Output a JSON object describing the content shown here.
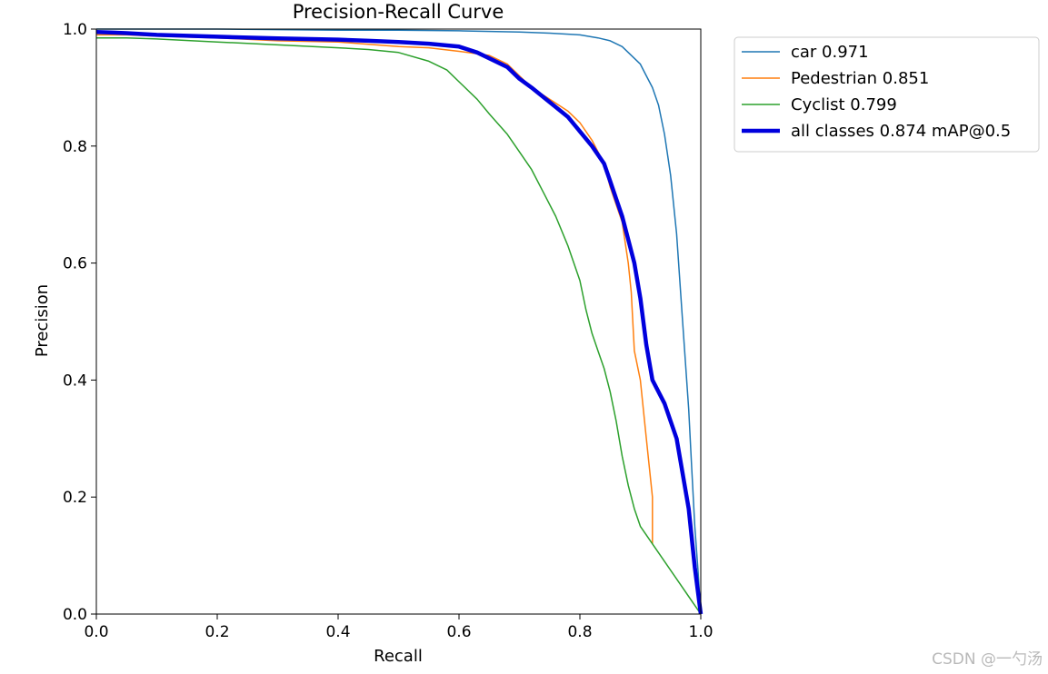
{
  "chart_data": {
    "type": "line",
    "title": "Precision-Recall Curve",
    "xlabel": "Recall",
    "ylabel": "Precision",
    "xlim": [
      0,
      1
    ],
    "ylim": [
      0,
      1
    ],
    "xticks": [
      "0.0",
      "0.2",
      "0.4",
      "0.6",
      "0.8",
      "1.0"
    ],
    "yticks": [
      "0.0",
      "0.2",
      "0.4",
      "0.6",
      "0.8",
      "1.0"
    ],
    "grid": false,
    "legend_position": "outside-top-right",
    "series": [
      {
        "name": "car 0.971",
        "color": "#1f77b4",
        "x": [
          0.0,
          0.05,
          0.1,
          0.2,
          0.3,
          0.4,
          0.5,
          0.6,
          0.7,
          0.75,
          0.8,
          0.83,
          0.85,
          0.87,
          0.89,
          0.9,
          0.91,
          0.92,
          0.93,
          0.94,
          0.95,
          0.96,
          0.97,
          0.98,
          0.985,
          0.99,
          0.995,
          1.0
        ],
        "y": [
          1.0,
          1.0,
          1.0,
          1.0,
          0.999,
          0.998,
          0.998,
          0.997,
          0.995,
          0.993,
          0.99,
          0.985,
          0.98,
          0.97,
          0.95,
          0.94,
          0.92,
          0.9,
          0.87,
          0.82,
          0.75,
          0.65,
          0.5,
          0.35,
          0.25,
          0.15,
          0.08,
          0.0
        ]
      },
      {
        "name": "Pedestrian 0.851",
        "color": "#ff7f0e",
        "x": [
          0.0,
          0.05,
          0.1,
          0.2,
          0.3,
          0.4,
          0.5,
          0.55,
          0.6,
          0.65,
          0.68,
          0.7,
          0.72,
          0.75,
          0.78,
          0.8,
          0.82,
          0.84,
          0.85,
          0.86,
          0.87,
          0.88,
          0.885,
          0.89,
          0.9,
          0.91,
          0.92,
          0.92
        ],
        "y": [
          0.99,
          0.99,
          0.988,
          0.985,
          0.98,
          0.978,
          0.97,
          0.968,
          0.962,
          0.955,
          0.94,
          0.92,
          0.9,
          0.88,
          0.86,
          0.84,
          0.81,
          0.77,
          0.73,
          0.7,
          0.67,
          0.6,
          0.55,
          0.45,
          0.4,
          0.3,
          0.2,
          0.12
        ]
      },
      {
        "name": "Cyclist 0.799",
        "color": "#2ca02c",
        "x": [
          0.0,
          0.05,
          0.1,
          0.2,
          0.3,
          0.4,
          0.45,
          0.5,
          0.55,
          0.58,
          0.6,
          0.63,
          0.65,
          0.68,
          0.7,
          0.72,
          0.74,
          0.76,
          0.78,
          0.8,
          0.81,
          0.82,
          0.83,
          0.84,
          0.85,
          0.86,
          0.87,
          0.88,
          0.89,
          0.9,
          1.0
        ],
        "y": [
          0.985,
          0.985,
          0.983,
          0.978,
          0.973,
          0.968,
          0.965,
          0.96,
          0.945,
          0.93,
          0.91,
          0.88,
          0.855,
          0.82,
          0.79,
          0.76,
          0.72,
          0.68,
          0.63,
          0.57,
          0.52,
          0.48,
          0.45,
          0.42,
          0.38,
          0.33,
          0.27,
          0.22,
          0.18,
          0.15,
          0.0
        ]
      },
      {
        "name": "all classes 0.874 mAP@0.5",
        "color": "#0000dd",
        "x": [
          0.0,
          0.05,
          0.1,
          0.2,
          0.3,
          0.4,
          0.45,
          0.5,
          0.55,
          0.6,
          0.63,
          0.65,
          0.68,
          0.7,
          0.72,
          0.75,
          0.78,
          0.8,
          0.82,
          0.84,
          0.85,
          0.86,
          0.87,
          0.88,
          0.89,
          0.9,
          0.91,
          0.92,
          0.94,
          0.96,
          0.98,
          0.99,
          1.0
        ],
        "y": [
          0.995,
          0.993,
          0.99,
          0.987,
          0.984,
          0.982,
          0.98,
          0.978,
          0.975,
          0.97,
          0.96,
          0.95,
          0.935,
          0.915,
          0.9,
          0.875,
          0.85,
          0.825,
          0.8,
          0.77,
          0.74,
          0.71,
          0.68,
          0.64,
          0.6,
          0.54,
          0.46,
          0.4,
          0.36,
          0.3,
          0.18,
          0.08,
          0.0
        ]
      }
    ]
  },
  "watermark": "CSDN @一勺汤"
}
